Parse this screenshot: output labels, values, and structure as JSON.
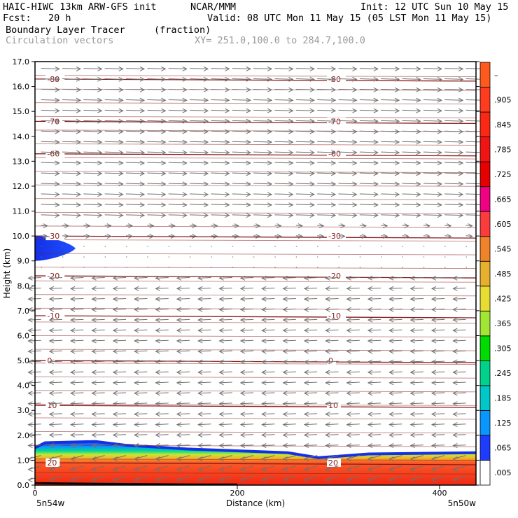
{
  "header": {
    "line1_left": "HAIC-HIWC 13km ARW-GFS init",
    "line1_mid": "NCAR/MMM",
    "line1_right": "Init: 12 UTC Sun 10 May 15",
    "line2_left": "Fcst:   20 h",
    "line2_right": "Valid: 08 UTC Mon 11 May 15 (05 LST Mon 11 May 15)",
    "line3_left": "Boundary Layer Tracer",
    "line3_mid": "(fraction)",
    "line4_left": "Circulation vectors",
    "line4_mid": "XY= 251.0,100.0 to 284.7,100.0"
  },
  "chart_data": {
    "type": "heatmap",
    "xlabel": "Distance (km)",
    "ylabel": "Height (km)",
    "xlim": [
      0,
      436
    ],
    "ylim": [
      0.0,
      17.0
    ],
    "x_ticks": [
      "0",
      "200",
      "400"
    ],
    "x_tick_values": [
      0,
      200,
      400
    ],
    "x_end_labels": [
      "5n54w",
      "5n50w"
    ],
    "y_ticks": [
      "0.0",
      "1.0",
      "2.0",
      "3.0",
      "4.0",
      "5.0",
      "6.0",
      "7.0",
      "8.0",
      "9.0",
      "10.0",
      "11.0",
      "12.0",
      "13.0",
      "14.0",
      "15.0",
      "16.0",
      "17.0"
    ],
    "y_tick_values": [
      0,
      1,
      2,
      3,
      4,
      5,
      6,
      7,
      8,
      9,
      10,
      11,
      12,
      13,
      14,
      15,
      16,
      17
    ],
    "colorbar_labels": [
      ".005",
      ".065",
      ".125",
      ".185",
      ".245",
      ".305",
      ".365",
      ".425",
      ".485",
      ".545",
      ".605",
      ".665",
      ".725",
      ".785",
      ".845",
      ".905",
      "–"
    ],
    "colorbar_colors": [
      "#ffffff",
      "#1e3cff",
      "#0a96ff",
      "#00c8c8",
      "#00d28c",
      "#00dc00",
      "#a0e632",
      "#e6dc32",
      "#e6af2d",
      "#f08228",
      "#fa3c3c",
      "#f00082",
      "#e60000",
      "#f01414",
      "#fa2814",
      "#ff3c1e",
      "#ff5a1e"
    ],
    "contour_color": "#8b1a1a",
    "contour_levels": [
      {
        "label": "-80",
        "height": 16.3
      },
      {
        "label": "-70",
        "height": 14.6
      },
      {
        "label": "-60",
        "height": 13.3
      },
      {
        "label": "-30",
        "height": 10.0
      },
      {
        "label": "-20",
        "height": 8.4
      },
      {
        "label": "-10",
        "height": 6.8
      },
      {
        "label": "0",
        "height": 5.0
      },
      {
        "label": "10",
        "height": 3.2
      },
      {
        "label": "20",
        "height": 0.9
      }
    ],
    "tracer_fields": [
      {
        "name": "boundary layer",
        "top_km": [
          [
            0,
            1.5
          ],
          [
            10,
            1.7
          ],
          [
            60,
            1.75
          ],
          [
            90,
            1.6
          ],
          [
            150,
            1.45
          ],
          [
            250,
            1.3
          ],
          [
            280,
            1.1
          ],
          [
            330,
            1.25
          ],
          [
            436,
            1.3
          ]
        ]
      },
      {
        "name": "elevated blob",
        "x_km": [
          0,
          40
        ],
        "height_km": [
          9.0,
          10.0
        ]
      }
    ]
  }
}
